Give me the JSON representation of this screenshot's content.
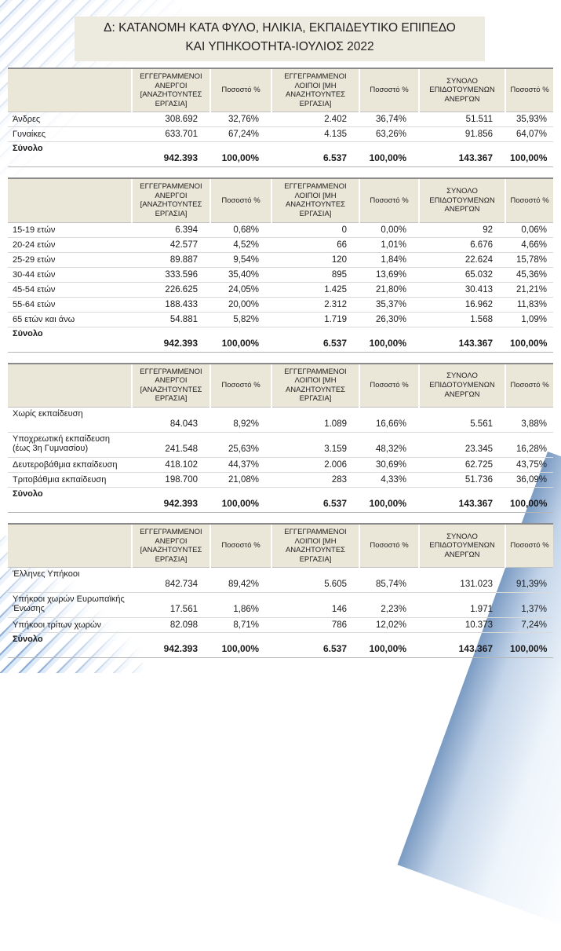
{
  "title": {
    "line1": "Δ: ΚΑΤΑΝΟΜΗ ΚΑΤΑ ΦΥΛΟ, ΗΛΙΚΙΑ, ΕΚΠΑΙΔΕΥΤΙΚΟ ΕΠΙΠΕΔΟ",
    "line2": "ΚΑΙ ΥΠΗΚΟΟΤΗΤΑ-ΙΟΥΛΙΟΣ 2022"
  },
  "colors": {
    "title_bg": "#EDEADF",
    "header_bg": "#EAE6D8",
    "decor_blue": "#6C8FBC"
  },
  "header": {
    "registered_unemployed": "ΕΓΓΕΓΡΑΜΜΕΝΟΙ ΑΝΕΡΓΟΙ [ΑΝΑΖΗΤΟΥΝΤΕΣ ΕΡΓΑΣΙΑ]",
    "pct": "Ποσοστό %",
    "registered_other": "ΕΓΓΕΓΡΑΜΜΕΝΟΙ ΛΟΙΠΟΙ [ΜΗ ΑΝΑΖΗΤΟΥΝΤΕΣ ΕΡΓΑΣΙΑ]",
    "subsidized_total": "ΣΥΝΟΛΟ ΕΠΙΔΟΤΟΥΜΕΝΩΝ ΑΝΕΡΓΩΝ"
  },
  "tables": {
    "gender": {
      "rows": [
        {
          "label": "Άνδρες",
          "cells": [
            "308.692",
            "32,76%",
            "2.402",
            "36,74%",
            "51.511",
            "35,93%"
          ]
        },
        {
          "label": "Γυναίκες",
          "cells": [
            "633.701",
            "67,24%",
            "4.135",
            "63,26%",
            "91.856",
            "64,07%"
          ]
        }
      ],
      "total": {
        "label": "Σύνολο",
        "cells": [
          "942.393",
          "100,00%",
          "6.537",
          "100,00%",
          "143.367",
          "100,00%"
        ]
      }
    },
    "age": {
      "rows": [
        {
          "label": "15-19  ετών",
          "cells": [
            "6.394",
            "0,68%",
            "0",
            "0,00%",
            "92",
            "0,06%"
          ]
        },
        {
          "label": "20-24  ετών",
          "cells": [
            "42.577",
            "4,52%",
            "66",
            "1,01%",
            "6.676",
            "4,66%"
          ]
        },
        {
          "label": "25-29 ετών",
          "cells": [
            "89.887",
            "9,54%",
            "120",
            "1,84%",
            "22.624",
            "15,78%"
          ]
        },
        {
          "label": "30-44  ετών",
          "cells": [
            "333.596",
            "35,40%",
            "895",
            "13,69%",
            "65.032",
            "45,36%"
          ]
        },
        {
          "label": "45-54 ετών",
          "cells": [
            "226.625",
            "24,05%",
            "1.425",
            "21,80%",
            "30.413",
            "21,21%"
          ]
        },
        {
          "label": "55-64 ετών",
          "cells": [
            "188.433",
            "20,00%",
            "2.312",
            "35,37%",
            "16.962",
            "11,83%"
          ]
        },
        {
          "label": "65 ετών και άνω",
          "cells": [
            "54.881",
            "5,82%",
            "1.719",
            "26,30%",
            "1.568",
            "1,09%"
          ]
        }
      ],
      "total": {
        "label": "Σύνολο",
        "cells": [
          "942.393",
          "100,00%",
          "6.537",
          "100,00%",
          "143.367",
          "100,00%"
        ]
      }
    },
    "education": {
      "rows": [
        {
          "label": "Χωρίς εκπαίδευση",
          "cells": [
            "84.043",
            "8,92%",
            "1.089",
            "16,66%",
            "5.561",
            "3,88%"
          ]
        },
        {
          "label": "Υποχρεωτική εκπαίδευση (έως 3η Γυμνασίου)",
          "cells": [
            "241.548",
            "25,63%",
            "3.159",
            "48,32%",
            "23.345",
            "16,28%"
          ]
        },
        {
          "label": "Δευτεροβάθμια εκπαίδευση",
          "cells": [
            "418.102",
            "44,37%",
            "2.006",
            "30,69%",
            "62.725",
            "43,75%"
          ]
        },
        {
          "label": "Τριτοβάθμια εκπαίδευση",
          "cells": [
            "198.700",
            "21,08%",
            "283",
            "4,33%",
            "51.736",
            "36,09%"
          ]
        }
      ],
      "total": {
        "label": "Σύνολο",
        "cells": [
          "942.393",
          "100,00%",
          "6.537",
          "100,00%",
          "143.367",
          "100,00%"
        ]
      }
    },
    "citizenship": {
      "rows": [
        {
          "label": "Έλληνες Υπήκοοι",
          "cells": [
            "842.734",
            "89,42%",
            "5.605",
            "85,74%",
            "131.023",
            "91,39%"
          ]
        },
        {
          "label": "Υπήκοοι χωρών Ευρωπαϊκής Ένωσης",
          "cells": [
            "17.561",
            "1,86%",
            "146",
            "2,23%",
            "1.971",
            "1,37%"
          ]
        },
        {
          "label": "Υπήκοοι τρίτων χωρών",
          "cells": [
            "82.098",
            "8,71%",
            "786",
            "12,02%",
            "10.373",
            "7,24%"
          ]
        }
      ],
      "total": {
        "label": "Σύνολο",
        "cells": [
          "942.393",
          "100,00%",
          "6.537",
          "100,00%",
          "143.367",
          "100,00%"
        ]
      }
    }
  }
}
